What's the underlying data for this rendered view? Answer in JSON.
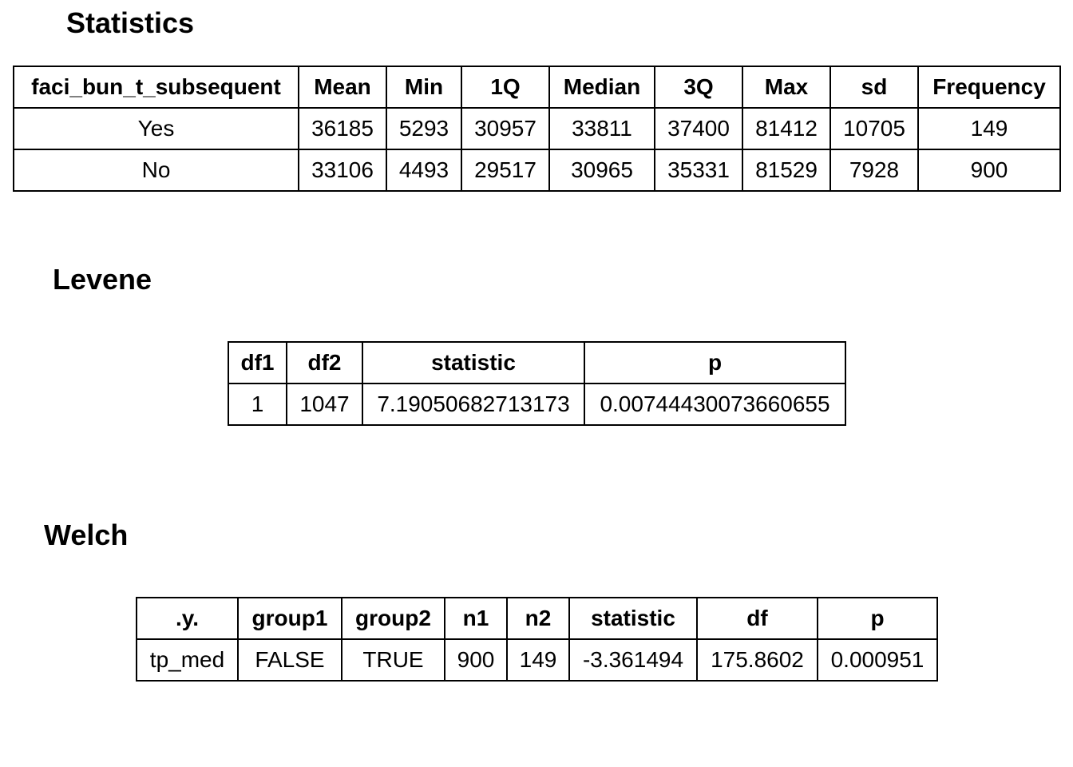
{
  "statistics": {
    "title": "Statistics",
    "headers": [
      "faci_bun_t_subsequent",
      "Mean",
      "Min",
      "1Q",
      "Median",
      "3Q",
      "Max",
      "sd",
      "Frequency"
    ],
    "rows": [
      [
        "Yes",
        "36185",
        "5293",
        "30957",
        "33811",
        "37400",
        "81412",
        "10705",
        "149"
      ],
      [
        "No",
        "33106",
        "4493",
        "29517",
        "30965",
        "35331",
        "81529",
        "7928",
        "900"
      ]
    ]
  },
  "levene": {
    "title": "Levene",
    "headers": [
      "df1",
      "df2",
      "statistic",
      "p"
    ],
    "rows": [
      [
        "1",
        "1047",
        "7.19050682713173",
        "0.00744430073660655"
      ]
    ]
  },
  "welch": {
    "title": "Welch",
    "headers": [
      ".y.",
      "group1",
      "group2",
      "n1",
      "n2",
      "statistic",
      "df",
      "p"
    ],
    "rows": [
      [
        "tp_med",
        "FALSE",
        "TRUE",
        "900",
        "149",
        "-3.361494",
        "175.8602",
        "0.000951"
      ]
    ]
  }
}
